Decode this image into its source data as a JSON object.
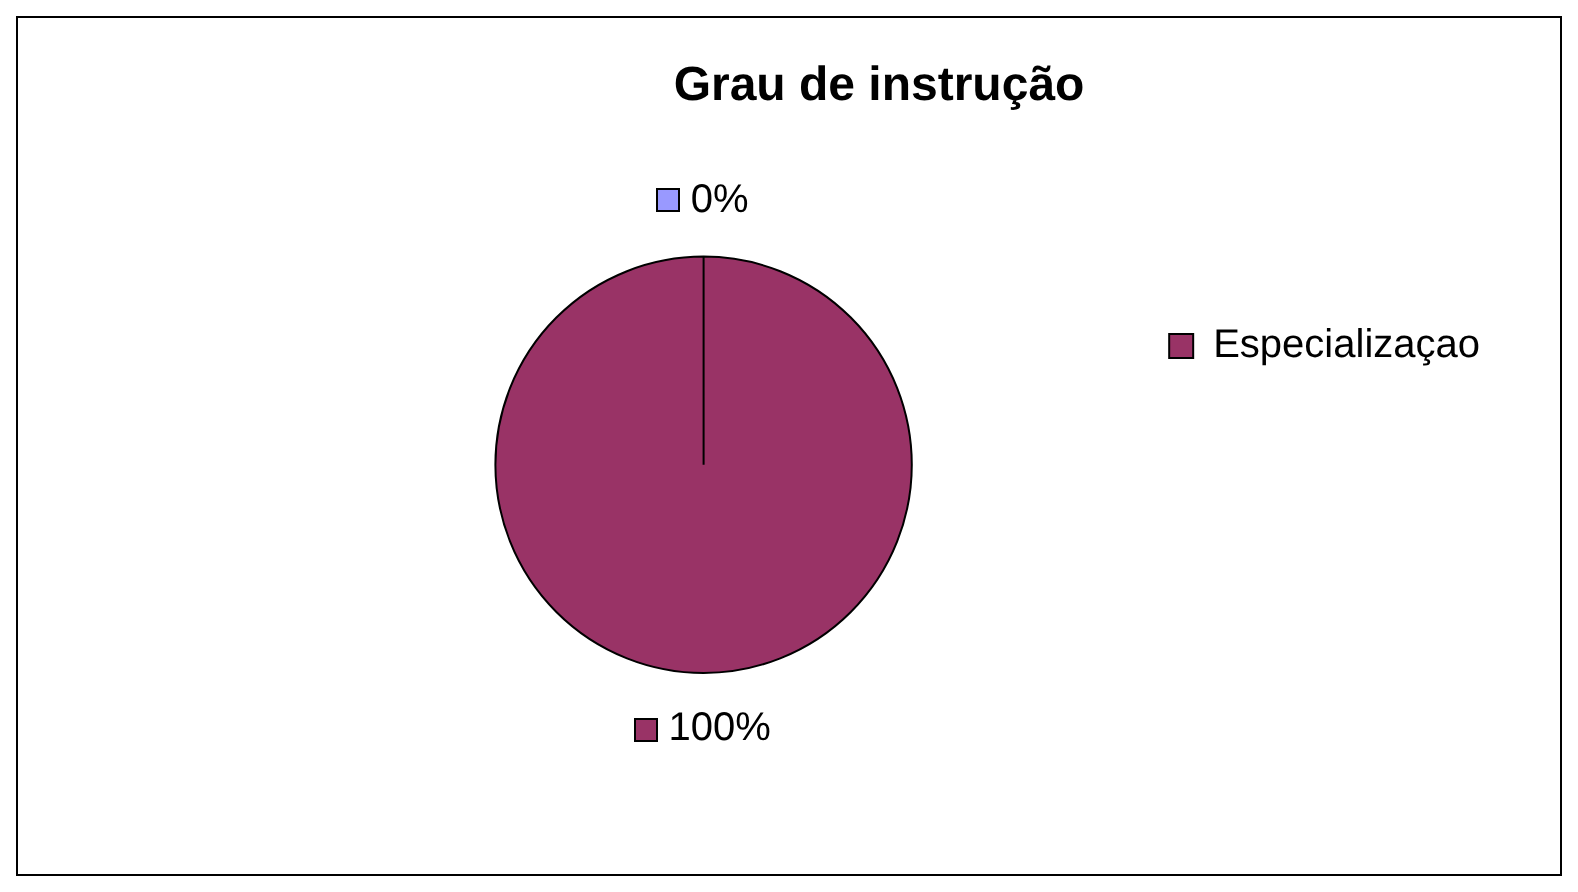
{
  "chart_data": {
    "type": "pie",
    "title": "Grau de instrução",
    "categories": [
      null,
      "Especializaçao"
    ],
    "values": [
      0,
      100
    ],
    "value_labels": [
      "0%",
      "100%"
    ],
    "colors": [
      "#9999ff",
      "#993366"
    ],
    "legend": "right"
  }
}
